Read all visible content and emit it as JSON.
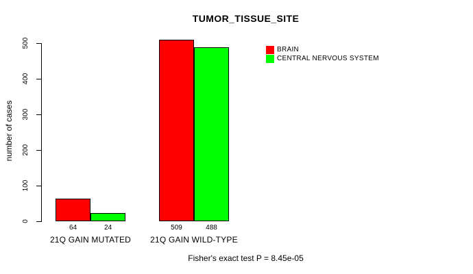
{
  "colors": {
    "background": "#ffffff",
    "axis": "#000000",
    "brain": "#FF0000",
    "cns": "#00FF00"
  },
  "chart_data": {
    "type": "bar",
    "title": "TUMOR_TISSUE_SITE",
    "xlabel": "",
    "ylabel": "number of cases",
    "categories": [
      "21Q GAIN MUTATED",
      "21Q GAIN WILD-TYPE"
    ],
    "series": [
      {
        "name": "BRAIN",
        "color": "#FF0000",
        "values": [
          64,
          509
        ]
      },
      {
        "name": "CENTRAL NERVOUS SYSTEM",
        "color": "#00FF00",
        "values": [
          24,
          488
        ]
      }
    ],
    "value_labels": [
      [
        "64",
        "509"
      ],
      [
        "24",
        "488"
      ]
    ],
    "yticks": [
      "0",
      "100",
      "200",
      "300",
      "400",
      "500"
    ],
    "ylim": [
      0,
      500
    ],
    "grid": false,
    "legend_position": "top-right",
    "annotation": "Fisher's exact test P = 8.45e-05"
  }
}
